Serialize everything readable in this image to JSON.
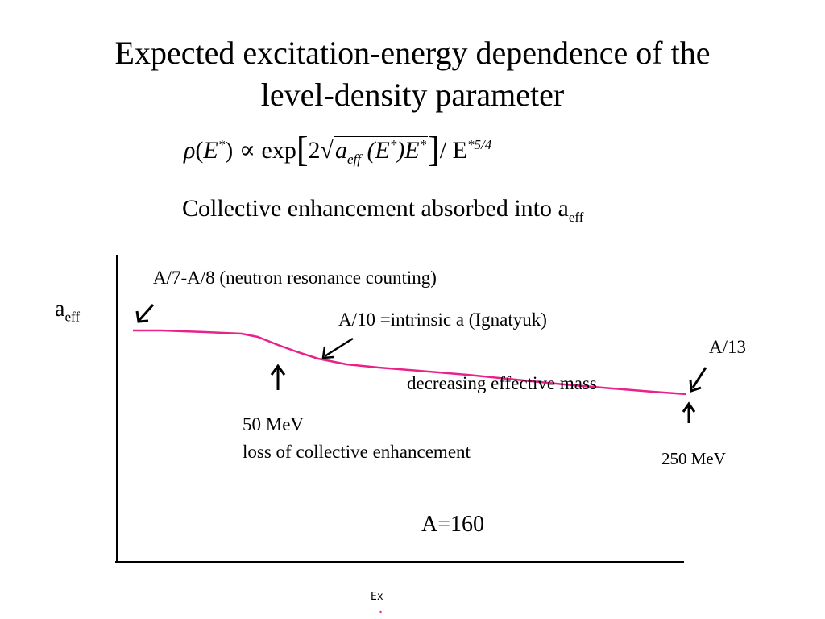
{
  "title": {
    "line1": "Expected excitation-energy dependence of the",
    "line2": "level-density parameter"
  },
  "formula": {
    "rho": "ρ",
    "open_paren": "(",
    "E": "E",
    "star": "*",
    "close_paren_prop": ") ∝ ",
    "exp": "exp",
    "two": "2",
    "a": "a",
    "eff": "eff",
    "mid": " (E",
    "mid_star": "*",
    "mid2": ")E",
    "mid2_star": "*",
    "slash": "/ E",
    "exponent_star": "*",
    "exponent": "5/4"
  },
  "collective": {
    "text": "Collective enhancement absorbed into a",
    "sub": "eff"
  },
  "axis": {
    "y_label": "a",
    "y_label_sub": "eff",
    "x_label": "Ex"
  },
  "annotations": {
    "neutron": "A/7-A/8 (neutron resonance counting)",
    "intrinsic": "A/10 =intrinsic a (Ignatyuk)",
    "a13": "A/13",
    "decreasing": "decreasing effective mass",
    "mev50": "50 MeV",
    "loss": "loss of collective enhancement",
    "mev250": "250 MeV",
    "mass": "A=160"
  },
  "colors": {
    "curve": "#e8228a",
    "axis": "#000000",
    "arrow": "#000000"
  }
}
